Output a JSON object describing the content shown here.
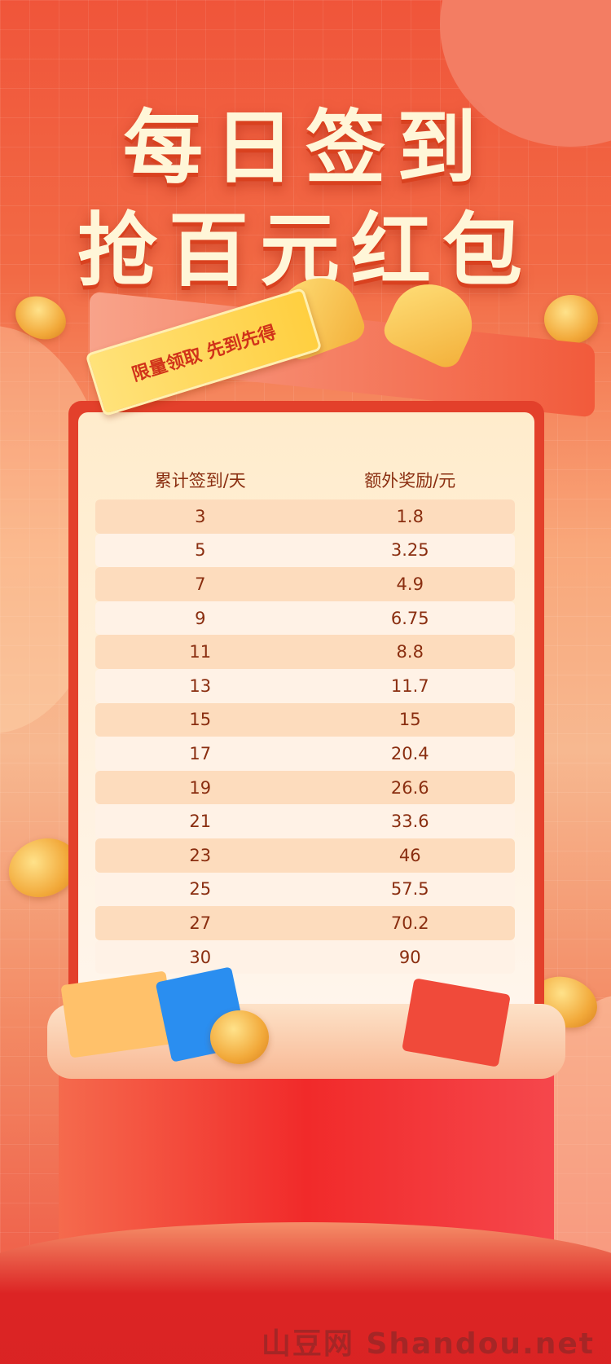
{
  "title": {
    "line1": "每日签到",
    "line2": "抢百元红包"
  },
  "tag": {
    "text": "限量领取  先到先得"
  },
  "table": {
    "headers": [
      "累计签到/天",
      "额外奖励/元"
    ],
    "rows": [
      [
        "3",
        "1.8"
      ],
      [
        "5",
        "3.25"
      ],
      [
        "7",
        "4.9"
      ],
      [
        "9",
        "6.75"
      ],
      [
        "11",
        "8.8"
      ],
      [
        "13",
        "11.7"
      ],
      [
        "15",
        "15"
      ],
      [
        "17",
        "20.4"
      ],
      [
        "19",
        "26.6"
      ],
      [
        "21",
        "33.6"
      ],
      [
        "23",
        "46"
      ],
      [
        "25",
        "57.5"
      ],
      [
        "27",
        "70.2"
      ],
      [
        "30",
        "90"
      ]
    ]
  },
  "watermark": "山豆网 Shandou.net",
  "colors": {
    "primary": "#f0553a",
    "text": "#8a2e10",
    "title": "#fff6d8",
    "row_odd": "#fddcbd",
    "row_even": "#fff2e6"
  }
}
